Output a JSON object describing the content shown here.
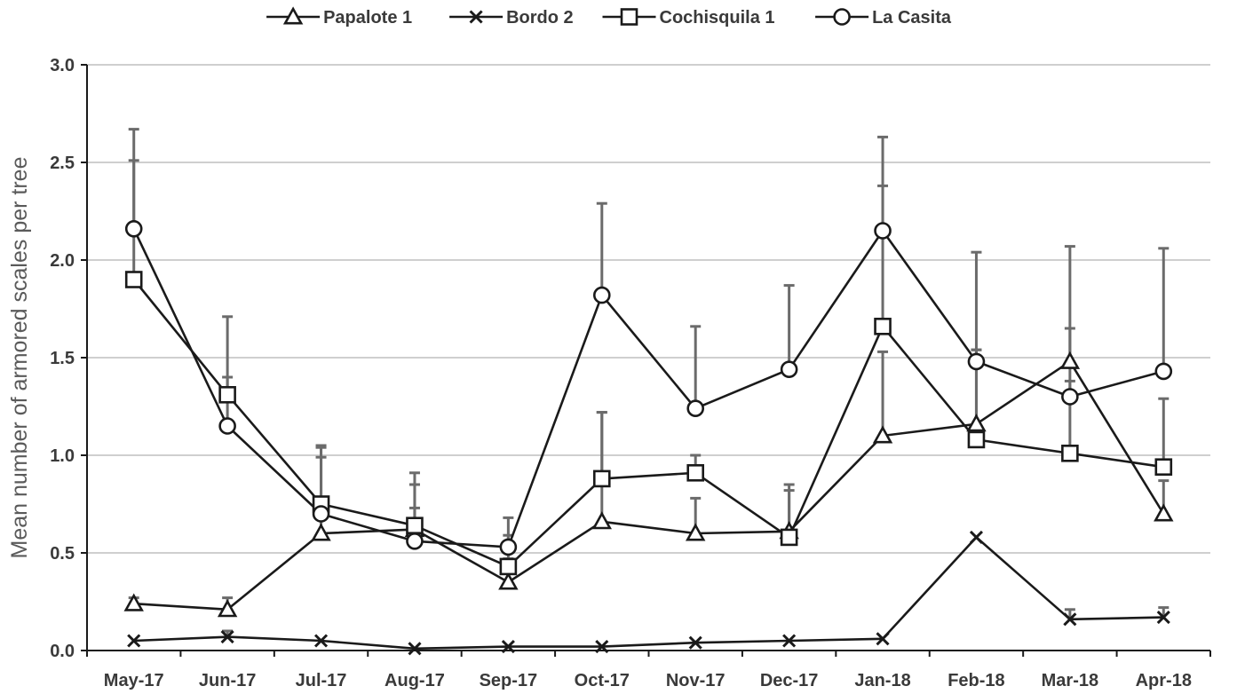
{
  "chart_data": {
    "type": "line",
    "ylabel": "Mean number of armored scales per tree",
    "xlabel": "",
    "ylim": [
      0,
      3.0
    ],
    "yticks": [
      0,
      0.5,
      1.0,
      1.5,
      2.0,
      2.5,
      3.0
    ],
    "ytick_labels": [
      "0.0",
      "0.5",
      "1.0",
      "1.5",
      "2.0",
      "2.5",
      "3.0"
    ],
    "grid": true,
    "legend_position": "top",
    "categories": [
      "May-17",
      "Jun-17",
      "Jul-17",
      "Aug-17",
      "Sep-17",
      "Oct-17",
      "Nov-17",
      "Dec-17",
      "Jan-18",
      "Feb-18",
      "Mar-18",
      "Apr-18"
    ],
    "series": [
      {
        "name": "Papalote 1",
        "marker": "triangle",
        "values": [
          0.24,
          0.21,
          0.6,
          0.62,
          0.35,
          0.66,
          0.6,
          0.61,
          1.1,
          1.16,
          1.48,
          0.7
        ],
        "error_upper": [
          0.27,
          0.27,
          0.99,
          0.85,
          0.47,
          1.22,
          0.78,
          0.82,
          1.53,
          1.54,
          1.65,
          0.87
        ]
      },
      {
        "name": "Bordo 2",
        "marker": "x",
        "values": [
          0.05,
          0.07,
          0.05,
          0.01,
          0.02,
          0.02,
          0.04,
          0.05,
          0.06,
          0.58,
          0.16,
          0.17
        ],
        "error_upper": [
          0.05,
          0.1,
          0.05,
          0.01,
          0.02,
          0.02,
          0.04,
          0.05,
          0.06,
          0.58,
          0.21,
          0.22
        ]
      },
      {
        "name": "Cochisquila 1",
        "marker": "square",
        "values": [
          1.9,
          1.31,
          0.75,
          0.64,
          0.43,
          0.88,
          0.91,
          0.58,
          1.66,
          1.08,
          1.01,
          0.94
        ],
        "error_upper": [
          2.51,
          1.4,
          1.05,
          0.91,
          0.59,
          1.22,
          1.0,
          0.85,
          2.38,
          1.54,
          1.38,
          1.29
        ]
      },
      {
        "name": "La Casita",
        "marker": "circle",
        "values": [
          2.16,
          1.15,
          0.7,
          0.56,
          0.53,
          1.82,
          1.24,
          1.44,
          2.15,
          1.48,
          1.3,
          1.43
        ],
        "error_upper": [
          2.67,
          1.71,
          1.04,
          0.73,
          0.68,
          2.29,
          1.66,
          1.87,
          2.63,
          2.04,
          2.07,
          2.06
        ]
      }
    ],
    "colors": {
      "line": "#1a1a1a",
      "error_bar": "#6b6b6b",
      "grid": "#cfcfcf",
      "axis": "#1a1a1a"
    }
  }
}
